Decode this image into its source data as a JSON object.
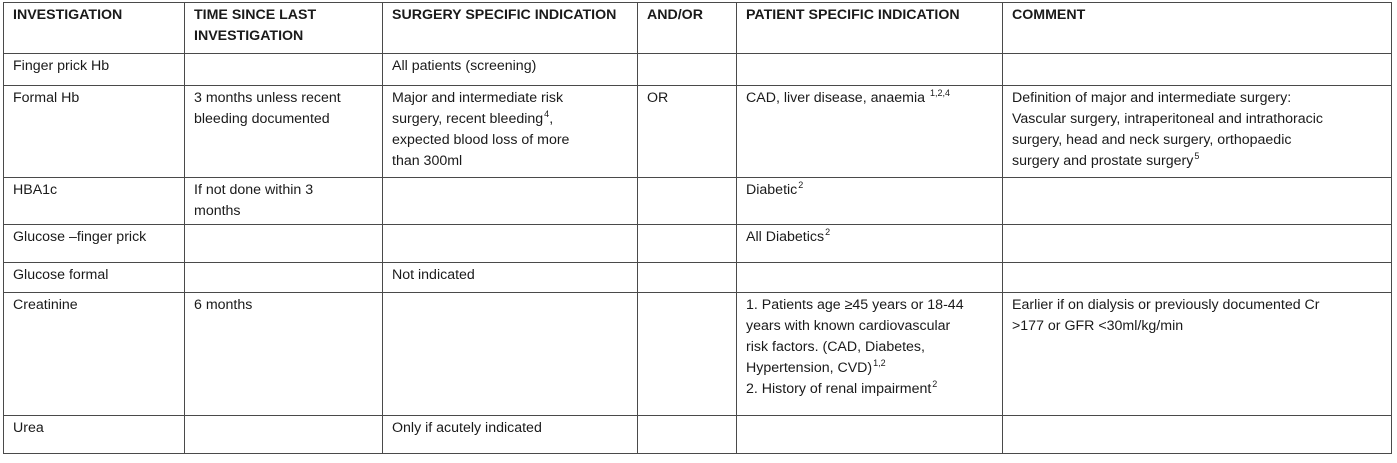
{
  "table": {
    "headers": [
      {
        "lines": [
          "INVESTIGATION"
        ]
      },
      {
        "lines": [
          "TIME SINCE LAST",
          "INVESTIGATION"
        ]
      },
      {
        "lines": [
          "SURGERY SPECIFIC INDICATION"
        ]
      },
      {
        "lines": [
          "AND/OR"
        ]
      },
      {
        "lines": [
          "PATIENT SPECIFIC INDICATION"
        ]
      },
      {
        "lines": [
          "COMMENT"
        ]
      }
    ],
    "rows": [
      {
        "investigation": [
          "Finger prick Hb"
        ],
        "time": [],
        "surgery": [
          "All patients (screening)"
        ],
        "andor": [],
        "patient": [],
        "comment": []
      },
      {
        "investigation": [
          "Formal Hb"
        ],
        "time": [
          "3 months unless recent",
          "bleeding documented"
        ],
        "surgery": [
          "Major and intermediate risk",
          "surgery, recent bleeding",
          "expected blood loss of more",
          "than 300ml"
        ],
        "surgery_sup": "4",
        "andor": [
          "OR"
        ],
        "patient": [
          "CAD, liver disease, anaemia"
        ],
        "patient_sup": "1,2,4",
        "comment": [
          "Definition of major and intermediate surgery:",
          "Vascular surgery, intraperitoneal and intrathoracic",
          "surgery, head and neck surgery, orthopaedic",
          "surgery and prostate surgery"
        ],
        "comment_sup": "5"
      },
      {
        "investigation": [
          "HBA1c"
        ],
        "time": [
          "If not done within 3",
          "months"
        ],
        "surgery": [],
        "andor": [],
        "patient": [
          "Diabetic"
        ],
        "patient_sup": "2",
        "comment": []
      },
      {
        "investigation": [
          "Glucose –finger prick"
        ],
        "time": [],
        "surgery": [],
        "andor": [],
        "patient": [
          "All Diabetics"
        ],
        "patient_sup": "2",
        "comment": []
      },
      {
        "investigation": [
          "Glucose formal"
        ],
        "time": [],
        "surgery": [
          "Not indicated"
        ],
        "andor": [],
        "patient": [],
        "comment": []
      },
      {
        "investigation": [
          "Creatinine"
        ],
        "time": [
          "6 months"
        ],
        "surgery": [],
        "andor": [],
        "patient": [
          "1. Patients age ≥45 years or 18-44",
          "years with known cardiovascular",
          "risk factors. (CAD, Diabetes,",
          "Hypertension, CVD)",
          "2. History of renal impairment"
        ],
        "patient_sup_line4": "1,2",
        "patient_sup_line5": "2",
        "comment": [
          "Earlier if on dialysis or previously documented Cr",
          ">177 or GFR <30ml/kg/min"
        ]
      },
      {
        "investigation": [
          "Urea"
        ],
        "time": [],
        "surgery": [
          "Only if acutely indicated"
        ],
        "andor": [],
        "patient": [],
        "comment": []
      }
    ]
  }
}
